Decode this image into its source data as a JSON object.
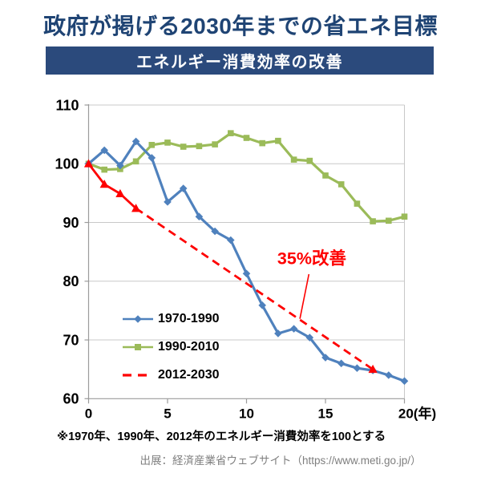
{
  "page": {
    "title": "政府が掲げる2030年までの省エネ目標",
    "banner": "エネルギー消費効率の改善",
    "footnote": "※1970年、1990年、2012年のエネルギー消費効率を100とする",
    "source": "出展：経済産業省ウェブサイト（https://www.meti.go.jp/）"
  },
  "colors": {
    "title_text": "#1f4474",
    "banner_bg": "#2b4a7c",
    "banner_text": "#ffffff",
    "blue": "#4f81bd",
    "green": "#9bbb59",
    "red": "#fe0000",
    "grid": "#c8c8c8",
    "axis": "#9b9b9b",
    "tick_text": "#000000",
    "legend_text": "#000000",
    "source_text": "#7f7f7f"
  },
  "chart_data": {
    "type": "line",
    "title": "エネルギー消費効率の改善",
    "xlabel": "年",
    "ylabel": "",
    "xlim": [
      0,
      20
    ],
    "ylim": [
      60,
      110
    ],
    "x_ticks": [
      0,
      5,
      10,
      15,
      20
    ],
    "x_tick_labels": [
      "0",
      "5",
      "10",
      "15",
      "20(年)"
    ],
    "y_ticks": [
      60,
      70,
      80,
      90,
      100,
      110
    ],
    "grid": "horizontal",
    "legend_position": "inside-lower-left",
    "series": [
      {
        "name": "1970-1990",
        "color_role": "blue",
        "marker": "diamond",
        "line_style": "solid",
        "x": [
          0,
          1,
          2,
          3,
          4,
          5,
          6,
          7,
          8,
          9,
          10,
          11,
          12,
          13,
          14,
          15,
          16,
          17,
          18,
          19,
          20
        ],
        "values": [
          100,
          102.3,
          99.7,
          103.8,
          101,
          93.5,
          95.8,
          91,
          88.5,
          87,
          81.3,
          75.9,
          71.1,
          71.9,
          70.4,
          67,
          66,
          65.2,
          64.8,
          64,
          63
        ]
      },
      {
        "name": "1990-2010",
        "color_role": "green",
        "marker": "square",
        "line_style": "solid",
        "x": [
          0,
          1,
          2,
          3,
          4,
          5,
          6,
          7,
          8,
          9,
          10,
          11,
          12,
          13,
          14,
          15,
          16,
          17,
          18,
          19,
          20
        ],
        "values": [
          100,
          99,
          99.1,
          100.4,
          103.2,
          103.6,
          102.9,
          103,
          103.3,
          105.2,
          104.4,
          103.5,
          103.9,
          100.7,
          100.5,
          98,
          96.5,
          93.2,
          90.2,
          90.3,
          91
        ]
      },
      {
        "name": "2012-2030",
        "color_role": "red",
        "marker": "triangle",
        "line_style": "solid-then-dashed",
        "solid_until_index": 3,
        "x": [
          0,
          1,
          2,
          3,
          18
        ],
        "values": [
          100,
          96.5,
          94.9,
          92.4,
          65
        ]
      }
    ],
    "annotation": {
      "text": "35%改善",
      "x": 11.95,
      "y": 85,
      "leader": [
        [
          13.95,
          81.2
        ],
        [
          13.38,
          73.6
        ]
      ]
    }
  }
}
